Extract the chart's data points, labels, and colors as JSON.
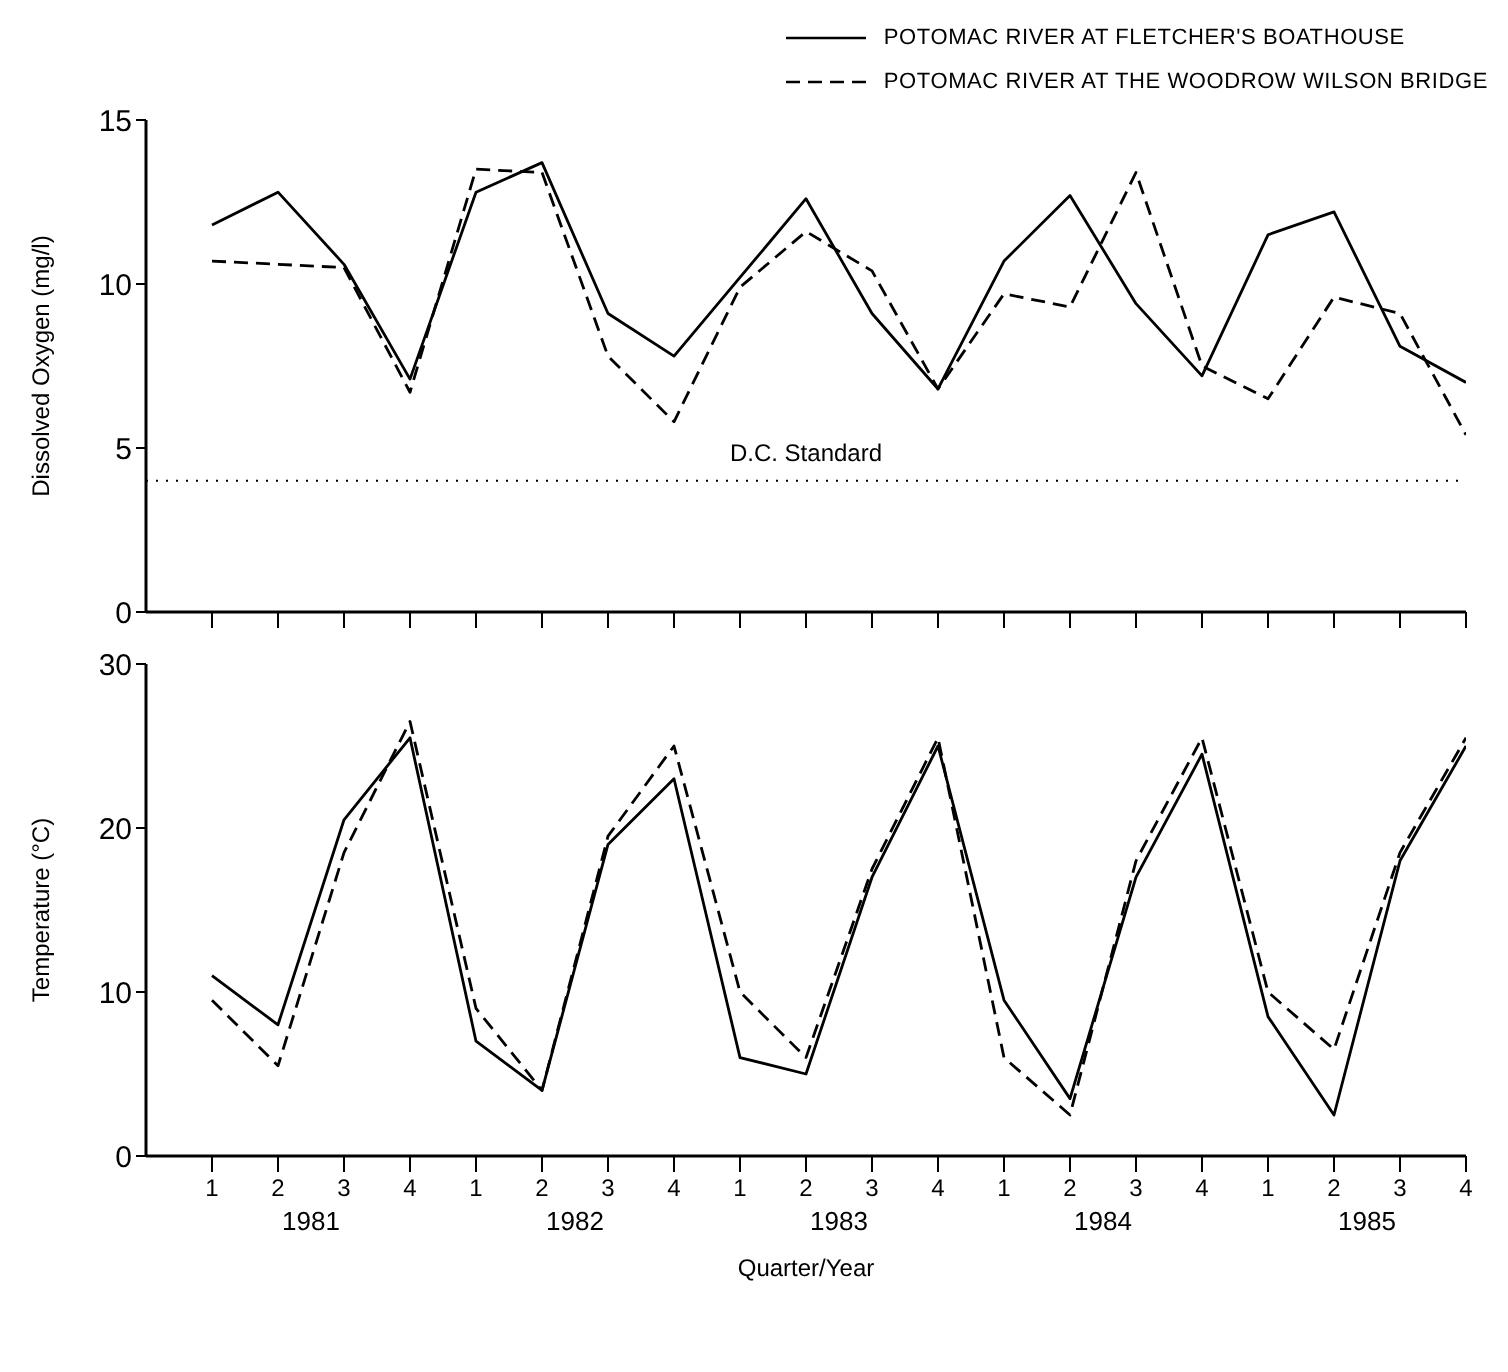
{
  "chart_data": [
    {
      "type": "line",
      "ylabel": "Dissolved Oxygen (mg/l)",
      "categories": [
        "1",
        "2",
        "3",
        "4",
        "1",
        "2",
        "3",
        "4",
        "1",
        "2",
        "3",
        "4",
        "1",
        "2",
        "3",
        "4",
        "1",
        "2",
        "3",
        "4"
      ],
      "series": [
        {
          "name": "POTOMAC RIVER AT FLETCHER'S BOATHOUSE",
          "color": "#000000",
          "line_style": "solid",
          "values": [
            11.8,
            12.8,
            10.6,
            7.1,
            12.8,
            13.7,
            9.1,
            7.8,
            10.2,
            12.6,
            9.1,
            6.8,
            10.7,
            12.7,
            9.4,
            7.2,
            11.5,
            12.2,
            8.1,
            7.0
          ]
        },
        {
          "name": "POTOMAC RIVER AT THE WOODROW WILSON BRIDGE",
          "color": "#000000",
          "line_style": "dashed",
          "values": [
            10.7,
            10.6,
            10.5,
            6.7,
            13.5,
            13.4,
            7.8,
            5.8,
            9.9,
            11.6,
            10.4,
            6.8,
            9.7,
            9.3,
            13.4,
            7.5,
            6.5,
            9.6,
            9.1,
            5.4
          ]
        }
      ],
      "ylim": [
        0,
        15
      ],
      "yticks": [
        0,
        5,
        10,
        15
      ],
      "tick_labels": "y",
      "legend": "top right",
      "grid": false,
      "marker": "none",
      "ref_lines": [
        {
          "axis": "y",
          "value": 4,
          "label": "D.C. Standard",
          "line_style": "dotted"
        }
      ]
    },
    {
      "type": "line",
      "ylabel": "Temperature (°C)",
      "xlabel": "Quarter/Year",
      "categories": [
        "1",
        "2",
        "3",
        "4",
        "1",
        "2",
        "3",
        "4",
        "1",
        "2",
        "3",
        "4",
        "1",
        "2",
        "3",
        "4",
        "1",
        "2",
        "3",
        "4"
      ],
      "series": [
        {
          "color": "#000000",
          "line_style": "solid",
          "values": [
            11,
            8,
            20.5,
            25.5,
            7,
            4,
            19,
            23,
            6,
            5,
            17,
            25,
            9.5,
            3.5,
            17,
            24.5,
            8.5,
            2.5,
            18,
            25
          ]
        },
        {
          "color": "#000000",
          "line_style": "dashed",
          "values": [
            9.5,
            5.5,
            18.5,
            26.5,
            9,
            4,
            19.5,
            25,
            10,
            6,
            17.5,
            25.5,
            6,
            2.5,
            18,
            25.5,
            10,
            6.5,
            18.5,
            25.5
          ]
        }
      ],
      "ylim": [
        0,
        30
      ],
      "yticks": [
        0,
        10,
        20,
        30
      ],
      "grid": false,
      "marker": "none",
      "annotations": [
        "1981",
        "1982",
        "1983",
        "1984",
        "1985"
      ]
    }
  ]
}
